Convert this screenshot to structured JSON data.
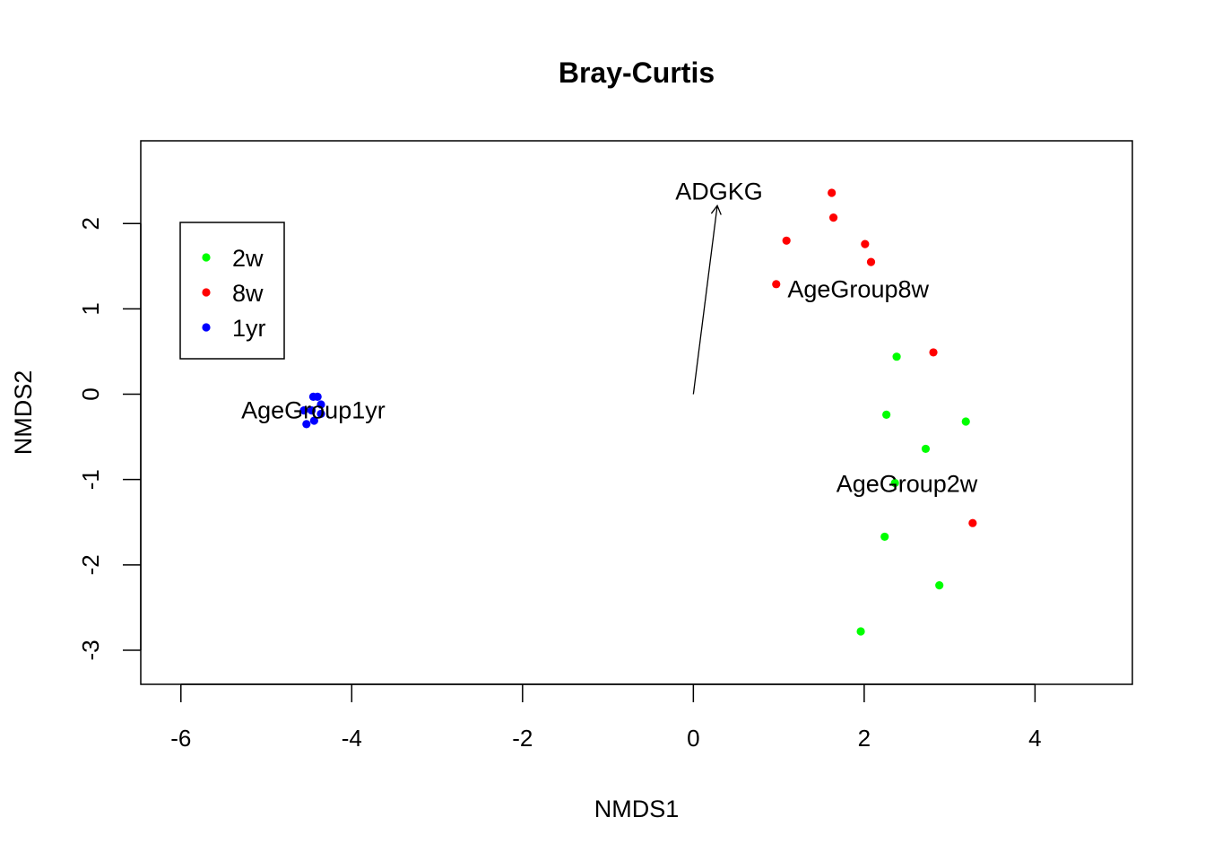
{
  "chart_data": {
    "type": "scatter",
    "title": "Bray-Curtis",
    "xlabel": "NMDS1",
    "ylabel": "NMDS2",
    "xlim": [
      -6.47,
      5.14
    ],
    "ylim": [
      -3.4,
      2.97
    ],
    "x_ticks": [
      -6,
      -4,
      -2,
      0,
      2,
      4
    ],
    "y_ticks": [
      -3,
      -2,
      -1,
      0,
      1,
      2
    ],
    "grid": false,
    "legend": {
      "placement": "top-left",
      "entries": [
        {
          "label": "2w",
          "color": "#00ff00"
        },
        {
          "label": "8w",
          "color": "#ff0000"
        },
        {
          "label": "1yr",
          "color": "#0000ff"
        }
      ]
    },
    "series": [
      {
        "name": "2w",
        "color": "#00ff00",
        "points": [
          {
            "x": 2.38,
            "y": 0.44
          },
          {
            "x": 2.26,
            "y": -0.24
          },
          {
            "x": 3.19,
            "y": -0.32
          },
          {
            "x": 2.72,
            "y": -0.64
          },
          {
            "x": 2.36,
            "y": -1.04
          },
          {
            "x": 2.24,
            "y": -1.67
          },
          {
            "x": 2.88,
            "y": -2.24
          },
          {
            "x": 1.96,
            "y": -2.78
          }
        ]
      },
      {
        "name": "8w",
        "color": "#ff0000",
        "points": [
          {
            "x": 1.62,
            "y": 2.36
          },
          {
            "x": 1.64,
            "y": 2.07
          },
          {
            "x": 1.09,
            "y": 1.8
          },
          {
            "x": 2.01,
            "y": 1.76
          },
          {
            "x": 2.08,
            "y": 1.55
          },
          {
            "x": 0.97,
            "y": 1.29
          },
          {
            "x": 2.81,
            "y": 0.49
          },
          {
            "x": 3.27,
            "y": -1.51
          }
        ]
      },
      {
        "name": "1yr",
        "color": "#0000ff",
        "points": [
          {
            "x": -4.45,
            "y": -0.03
          },
          {
            "x": -4.4,
            "y": -0.03
          },
          {
            "x": -4.36,
            "y": -0.12
          },
          {
            "x": -4.56,
            "y": -0.19
          },
          {
            "x": -4.47,
            "y": -0.19
          },
          {
            "x": -4.36,
            "y": -0.23
          },
          {
            "x": -4.44,
            "y": -0.31
          },
          {
            "x": -4.53,
            "y": -0.35
          }
        ]
      }
    ],
    "vectors": [
      {
        "label": "ADGKG",
        "x0": 0,
        "y0": 0,
        "x1": 0.28,
        "y1": 2.21
      }
    ],
    "annotations": [
      {
        "text": "AgeGroup1yr",
        "x": -4.45,
        "y": -0.19
      },
      {
        "text": "AgeGroup8w",
        "x": 1.93,
        "y": 1.23
      },
      {
        "text": "AgeGroup2w",
        "x": 2.5,
        "y": -1.05
      }
    ]
  }
}
